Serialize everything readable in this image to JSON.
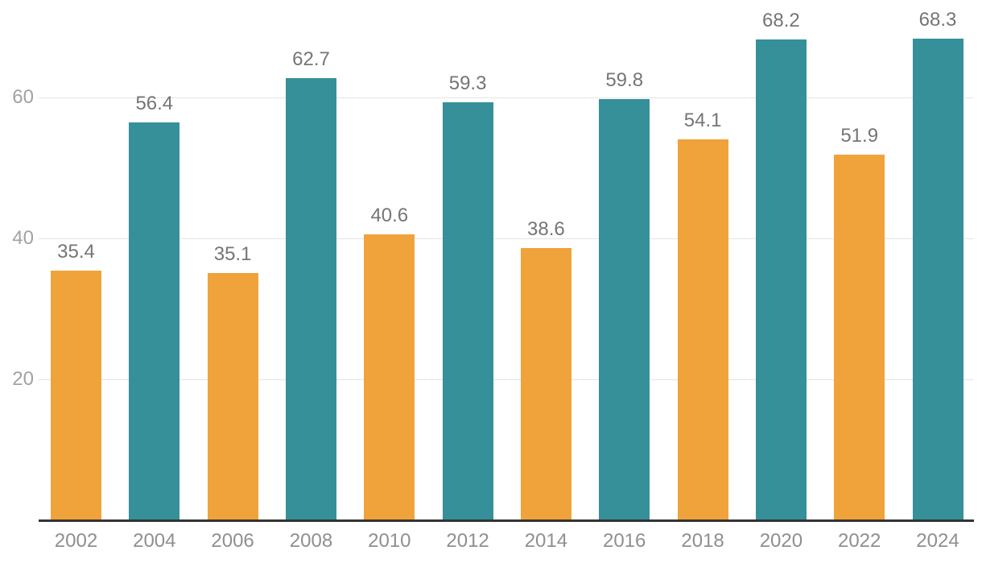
{
  "chart_data": {
    "type": "bar",
    "title": "",
    "xlabel": "",
    "ylabel": "",
    "categories": [
      "2002",
      "2004",
      "2006",
      "2008",
      "2010",
      "2012",
      "2014",
      "2016",
      "2018",
      "2020",
      "2022",
      "2024"
    ],
    "values": [
      35.4,
      56.4,
      35.1,
      62.7,
      40.6,
      59.3,
      38.6,
      59.8,
      54.1,
      68.2,
      51.9,
      68.3
    ],
    "value_labels": [
      "35.4",
      "56.4",
      "35.1",
      "62.7",
      "40.6",
      "59.3",
      "38.6",
      "59.8",
      "54.1",
      "68.2",
      "51.9",
      "68.3"
    ],
    "ytick_labels": [
      "20",
      "40",
      "60"
    ],
    "yticks": [
      20,
      40,
      60
    ],
    "ylim": [
      0,
      74
    ],
    "grid": "horizontal",
    "legend": "none",
    "bar_color_pattern": [
      "#F0A33A",
      "#35909A"
    ],
    "colors": {
      "orange_bar": "#F0A33A",
      "teal_bar": "#35909A",
      "gridline": "#e4e4e4",
      "axis_line": "#333333",
      "value_label": "#757575",
      "x_tick_label": "#8f8f8f",
      "y_tick_label": "#a2a2a2"
    }
  }
}
